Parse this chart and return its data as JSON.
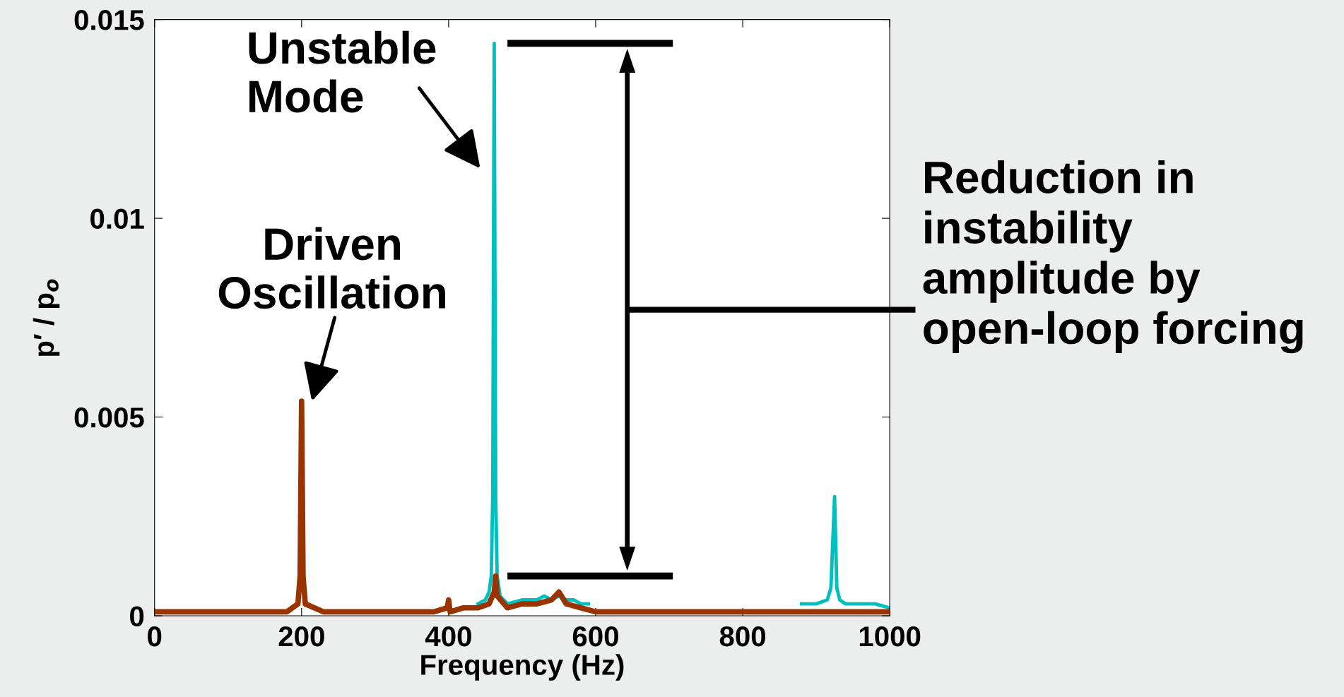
{
  "chart_data": {
    "type": "line",
    "xlabel": "Frequency (Hz)",
    "ylabel": "p′ / p$_{o}$",
    "xlim": [
      0,
      1000
    ],
    "ylim": [
      0,
      0.015
    ],
    "xticks": [
      0,
      200,
      400,
      600,
      800,
      1000
    ],
    "yticks": [
      0,
      0.005,
      0.01,
      0.015
    ],
    "grid": false,
    "legend": false,
    "series": [
      {
        "color": "#00bfbf",
        "x": [
          440,
          450,
          455,
          458,
          460,
          462,
          464,
          466,
          470,
          480,
          500,
          520,
          530,
          540,
          550,
          560,
          570,
          580,
          590,
          700,
          880,
          900,
          915,
          920,
          925,
          928,
          932,
          940,
          960,
          980,
          1000
        ],
        "values": [
          0.0003,
          0.0004,
          0.0006,
          0.001,
          0.003,
          0.0144,
          0.003,
          0.001,
          0.0005,
          0.0003,
          0.0004,
          0.0004,
          0.0005,
          0.0004,
          0.0005,
          0.0004,
          0.0004,
          0.0003,
          0.0003,
          null,
          0.0003,
          0.0003,
          0.0004,
          0.0007,
          0.003,
          0.0007,
          0.0004,
          0.0003,
          0.0003,
          0.0003,
          0.0002
        ]
      },
      {
        "color": "#993300",
        "x": [
          0,
          30,
          60,
          90,
          120,
          150,
          180,
          195,
          198,
          200,
          202,
          205,
          230,
          260,
          290,
          320,
          350,
          380,
          398,
          400,
          402,
          420,
          440,
          455,
          462,
          464,
          466,
          480,
          500,
          520,
          540,
          550,
          560,
          580,
          600,
          640,
          680,
          720,
          760,
          800,
          840,
          880,
          920,
          960,
          1000
        ],
        "values": [
          0.0001,
          0.0001,
          0.0001,
          0.0001,
          0.0001,
          0.0001,
          0.0001,
          0.0003,
          0.001,
          0.0054,
          0.001,
          0.0003,
          0.0001,
          0.0001,
          0.0001,
          0.0001,
          0.0001,
          0.0001,
          0.0002,
          0.0004,
          0.0001,
          0.0002,
          0.0002,
          0.0003,
          0.0006,
          0.001,
          0.0005,
          0.0002,
          0.0003,
          0.0003,
          0.0004,
          0.0006,
          0.0003,
          0.0002,
          0.0001,
          0.0001,
          0.0001,
          0.0001,
          0.0001,
          0.0001,
          0.0001,
          0.0001,
          0.0001,
          0.0001,
          0.0001
        ]
      }
    ],
    "annotations": [
      "Unstable\nMode",
      "Driven\nOscillation",
      "Reduction in\ninstability\namplitude by\nopen-loop forcing"
    ]
  }
}
